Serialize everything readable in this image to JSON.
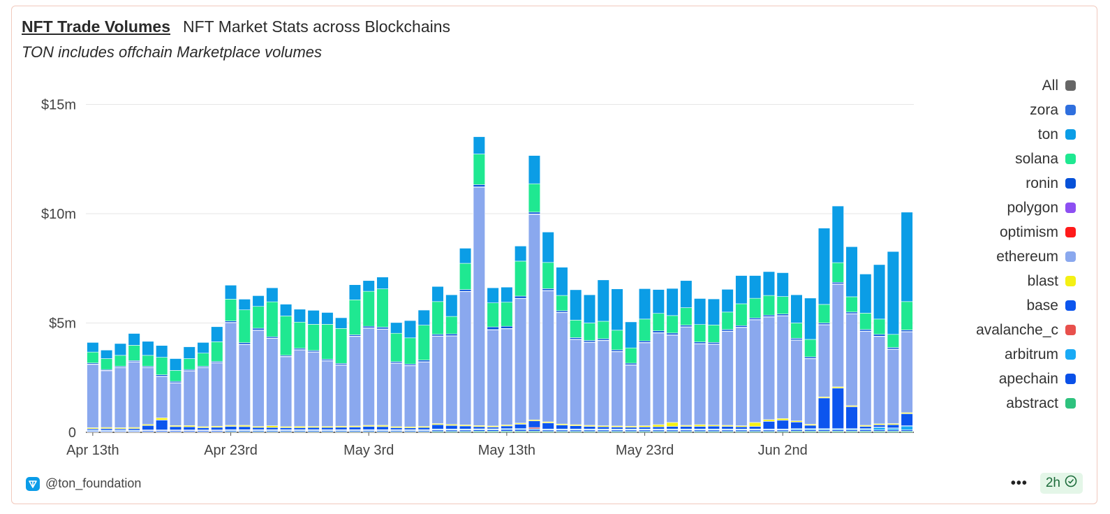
{
  "header": {
    "title": "NFT Trade Volumes",
    "subtitle": "NFT Market Stats across Blockchains",
    "note": "TON includes offchain Marketplace volumes"
  },
  "footer": {
    "author": "@ton_foundation",
    "more_label": "•••",
    "refresh_label": "2h"
  },
  "chart_data": {
    "type": "bar",
    "stacked": true,
    "title": "NFT Trade Volumes",
    "xlabel": "",
    "ylabel": "",
    "ylim": [
      0,
      15.8
    ],
    "yticks": [
      0,
      5,
      10,
      15
    ],
    "ytick_labels": [
      "0",
      "$5m",
      "$10m",
      "$15m"
    ],
    "xtick_labels": [
      {
        "label": "Apr 13th",
        "index": 0
      },
      {
        "label": "Apr 23rd",
        "index": 10
      },
      {
        "label": "May 3rd",
        "index": 20
      },
      {
        "label": "May 13th",
        "index": 30
      },
      {
        "label": "May 23rd",
        "index": 40
      },
      {
        "label": "Jun 2nd",
        "index": 50
      }
    ],
    "legend": [
      "All",
      "zora",
      "ton",
      "solana",
      "ronin",
      "polygon",
      "optimism",
      "ethereum",
      "blast",
      "base",
      "avalanche_c",
      "arbitrum",
      "apechain",
      "abstract"
    ],
    "legend_colors": [
      "#666666",
      "#2f6fde",
      "#0b9de6",
      "#1fe891",
      "#0651d8",
      "#8d4ff2",
      "#ff1a1a",
      "#8aa8ee",
      "#f4f014",
      "#0c55ee",
      "#e8504c",
      "#19aaf5",
      "#0a50e8",
      "#2ec27e"
    ],
    "series_order_bottom_to_top": [
      "abstract",
      "apechain",
      "arbitrum",
      "avalanche_c",
      "base",
      "blast",
      "ethereum",
      "optimism",
      "polygon",
      "ronin",
      "solana",
      "ton",
      "zora"
    ],
    "series": [
      {
        "name": "abstract",
        "color": "#2ec27e",
        "values": [
          0.02,
          0.02,
          0.02,
          0.02,
          0.02,
          0.02,
          0.02,
          0.02,
          0.02,
          0.02,
          0.03,
          0.03,
          0.03,
          0.03,
          0.03,
          0.03,
          0.03,
          0.03,
          0.03,
          0.03,
          0.03,
          0.03,
          0.03,
          0.03,
          0.03,
          0.04,
          0.04,
          0.04,
          0.05,
          0.05,
          0.05,
          0.05,
          0.05,
          0.04,
          0.04,
          0.04,
          0.04,
          0.04,
          0.04,
          0.04,
          0.04,
          0.04,
          0.04,
          0.04,
          0.04,
          0.04,
          0.04,
          0.04,
          0.04,
          0.04,
          0.04,
          0.05,
          0.05,
          0.05,
          0.05,
          0.05,
          0.05,
          0.05,
          0.05,
          0.05
        ]
      },
      {
        "name": "apechain",
        "color": "#0a50e8",
        "values": [
          0.04,
          0.04,
          0.04,
          0.04,
          0.05,
          0.05,
          0.05,
          0.05,
          0.05,
          0.05,
          0.05,
          0.05,
          0.05,
          0.05,
          0.05,
          0.05,
          0.05,
          0.05,
          0.05,
          0.05,
          0.05,
          0.05,
          0.05,
          0.05,
          0.05,
          0.06,
          0.06,
          0.06,
          0.06,
          0.06,
          0.07,
          0.07,
          0.07,
          0.06,
          0.06,
          0.06,
          0.06,
          0.06,
          0.06,
          0.06,
          0.06,
          0.06,
          0.06,
          0.06,
          0.06,
          0.06,
          0.06,
          0.06,
          0.06,
          0.06,
          0.06,
          0.06,
          0.06,
          0.06,
          0.06,
          0.06,
          0.06,
          0.06,
          0.06,
          0.06
        ]
      },
      {
        "name": "arbitrum",
        "color": "#19aaf5",
        "values": [
          0.03,
          0.03,
          0.03,
          0.03,
          0.03,
          0.03,
          0.03,
          0.03,
          0.03,
          0.03,
          0.03,
          0.03,
          0.03,
          0.03,
          0.03,
          0.03,
          0.03,
          0.03,
          0.03,
          0.03,
          0.03,
          0.03,
          0.03,
          0.03,
          0.03,
          0.04,
          0.04,
          0.04,
          0.04,
          0.04,
          0.04,
          0.04,
          0.04,
          0.04,
          0.04,
          0.04,
          0.04,
          0.04,
          0.04,
          0.04,
          0.04,
          0.04,
          0.04,
          0.04,
          0.04,
          0.04,
          0.04,
          0.04,
          0.04,
          0.04,
          0.04,
          0.05,
          0.05,
          0.05,
          0.05,
          0.05,
          0.05,
          0.12,
          0.08,
          0.18
        ]
      },
      {
        "name": "avalanche_c",
        "color": "#e8504c",
        "values": [
          0.01,
          0.01,
          0.01,
          0.01,
          0.01,
          0.01,
          0.01,
          0.01,
          0.01,
          0.01,
          0.01,
          0.01,
          0.01,
          0.01,
          0.01,
          0.01,
          0.01,
          0.01,
          0.01,
          0.01,
          0.01,
          0.01,
          0.01,
          0.01,
          0.01,
          0.01,
          0.01,
          0.01,
          0.01,
          0.01,
          0.01,
          0.01,
          0.06,
          0.01,
          0.01,
          0.01,
          0.01,
          0.01,
          0.01,
          0.01,
          0.01,
          0.01,
          0.01,
          0.01,
          0.01,
          0.01,
          0.01,
          0.01,
          0.01,
          0.01,
          0.01,
          0.01,
          0.01,
          0.01,
          0.01,
          0.01,
          0.01,
          0.01,
          0.01,
          0.01
        ]
      },
      {
        "name": "base",
        "color": "#0c55ee",
        "values": [
          0.06,
          0.07,
          0.06,
          0.07,
          0.2,
          0.45,
          0.15,
          0.14,
          0.1,
          0.12,
          0.15,
          0.14,
          0.1,
          0.1,
          0.09,
          0.09,
          0.1,
          0.1,
          0.11,
          0.12,
          0.15,
          0.14,
          0.09,
          0.08,
          0.1,
          0.2,
          0.16,
          0.14,
          0.1,
          0.08,
          0.12,
          0.2,
          0.3,
          0.28,
          0.18,
          0.15,
          0.12,
          0.1,
          0.09,
          0.08,
          0.09,
          0.1,
          0.12,
          0.12,
          0.12,
          0.13,
          0.12,
          0.1,
          0.12,
          0.35,
          0.4,
          0.3,
          0.15,
          1.4,
          1.85,
          1.0,
          0.1,
          0.1,
          0.15,
          0.55
        ]
      },
      {
        "name": "blast",
        "color": "#f4f014",
        "values": [
          0.05,
          0.05,
          0.05,
          0.05,
          0.05,
          0.1,
          0.05,
          0.06,
          0.05,
          0.05,
          0.05,
          0.06,
          0.05,
          0.08,
          0.05,
          0.06,
          0.05,
          0.05,
          0.05,
          0.05,
          0.05,
          0.06,
          0.05,
          0.05,
          0.05,
          0.05,
          0.05,
          0.05,
          0.05,
          0.05,
          0.05,
          0.05,
          0.05,
          0.05,
          0.05,
          0.05,
          0.05,
          0.05,
          0.05,
          0.05,
          0.06,
          0.1,
          0.18,
          0.05,
          0.08,
          0.05,
          0.05,
          0.05,
          0.18,
          0.08,
          0.08,
          0.05,
          0.05,
          0.05,
          0.06,
          0.05,
          0.05,
          0.05,
          0.05,
          0.05
        ]
      },
      {
        "name": "ethereum",
        "color": "#8aa8ee",
        "values": [
          2.9,
          2.6,
          2.75,
          3.0,
          2.6,
          1.9,
          1.95,
          2.5,
          2.7,
          2.9,
          4.7,
          3.7,
          4.4,
          4.0,
          3.2,
          3.5,
          3.4,
          3.0,
          2.8,
          4.1,
          4.45,
          4.4,
          2.9,
          2.8,
          2.95,
          4.0,
          4.05,
          6.1,
          10.9,
          4.4,
          4.4,
          5.7,
          9.4,
          6.0,
          5.1,
          3.9,
          3.8,
          3.9,
          3.4,
          2.8,
          3.8,
          4.2,
          4.0,
          4.5,
          3.7,
          3.7,
          4.3,
          4.5,
          4.7,
          4.7,
          4.7,
          3.7,
          3.0,
          3.3,
          4.7,
          4.2,
          4.3,
          4.0,
          3.4,
          3.7
        ]
      },
      {
        "name": "optimism",
        "color": "#ff1a1a",
        "values": [
          0,
          0,
          0,
          0,
          0,
          0,
          0,
          0,
          0,
          0,
          0,
          0,
          0,
          0,
          0,
          0,
          0,
          0,
          0,
          0,
          0,
          0,
          0,
          0,
          0,
          0,
          0,
          0,
          0,
          0,
          0,
          0,
          0,
          0,
          0,
          0,
          0,
          0,
          0,
          0,
          0,
          0,
          0,
          0,
          0,
          0,
          0,
          0,
          0,
          0,
          0,
          0,
          0,
          0,
          0,
          0,
          0,
          0,
          0,
          0
        ]
      },
      {
        "name": "polygon",
        "color": "#8d4ff2",
        "values": [
          0.01,
          0.01,
          0.01,
          0.01,
          0.01,
          0.01,
          0.01,
          0.01,
          0.01,
          0.01,
          0.01,
          0.01,
          0.01,
          0.01,
          0.01,
          0.01,
          0.01,
          0.01,
          0.01,
          0.01,
          0.01,
          0.01,
          0.01,
          0.01,
          0.01,
          0.01,
          0.01,
          0.01,
          0.02,
          0.01,
          0.01,
          0.01,
          0.02,
          0.01,
          0.01,
          0.01,
          0.01,
          0.01,
          0.01,
          0.01,
          0.01,
          0.01,
          0.01,
          0.01,
          0.01,
          0.01,
          0.01,
          0.01,
          0.01,
          0.01,
          0.01,
          0.01,
          0.01,
          0.01,
          0.01,
          0.01,
          0.01,
          0.01,
          0.01,
          0.01
        ]
      },
      {
        "name": "ronin",
        "color": "#0651d8",
        "values": [
          0.05,
          0.04,
          0.05,
          0.05,
          0.05,
          0.06,
          0.06,
          0.05,
          0.05,
          0.05,
          0.06,
          0.07,
          0.08,
          0.06,
          0.05,
          0.06,
          0.06,
          0.06,
          0.06,
          0.06,
          0.07,
          0.08,
          0.06,
          0.06,
          0.07,
          0.07,
          0.08,
          0.08,
          0.1,
          0.12,
          0.1,
          0.1,
          0.08,
          0.08,
          0.07,
          0.07,
          0.07,
          0.07,
          0.07,
          0.07,
          0.07,
          0.08,
          0.08,
          0.07,
          0.07,
          0.07,
          0.07,
          0.07,
          0.07,
          0.07,
          0.07,
          0.07,
          0.07,
          0.07,
          0.07,
          0.07,
          0.07,
          0.08,
          0.07,
          0.07
        ]
      },
      {
        "name": "solana",
        "color": "#1fe891",
        "values": [
          0.5,
          0.5,
          0.5,
          0.7,
          0.5,
          0.8,
          0.5,
          0.5,
          0.6,
          0.9,
          1.0,
          1.5,
          1.0,
          1.6,
          1.8,
          1.2,
          1.2,
          1.6,
          1.6,
          1.6,
          1.6,
          1.75,
          1.3,
          1.2,
          1.6,
          1.5,
          0.8,
          1.2,
          1.4,
          1.1,
          1.1,
          1.6,
          1.3,
          1.2,
          0.7,
          0.8,
          0.8,
          0.8,
          0.9,
          0.7,
          1.0,
          0.8,
          0.8,
          0.8,
          0.8,
          0.8,
          0.8,
          1.0,
          0.9,
          0.9,
          0.8,
          0.7,
          0.8,
          0.85,
          0.9,
          0.7,
          0.75,
          0.7,
          0.6,
          1.3
        ]
      },
      {
        "name": "ton",
        "color": "#0b9de6",
        "values": [
          0.45,
          0.4,
          0.55,
          0.55,
          0.65,
          0.55,
          0.55,
          0.55,
          0.5,
          0.7,
          0.65,
          0.5,
          0.5,
          0.65,
          0.55,
          0.6,
          0.65,
          0.55,
          0.5,
          0.7,
          0.5,
          0.55,
          0.5,
          0.8,
          0.7,
          0.7,
          1.0,
          0.7,
          0.8,
          0.7,
          0.7,
          0.7,
          1.3,
          1.4,
          1.3,
          1.4,
          1.3,
          1.9,
          1.9,
          1.2,
          1.4,
          1.1,
          1.25,
          1.25,
          1.2,
          1.2,
          1.05,
          1.3,
          1.05,
          1.1,
          1.1,
          1.3,
          1.9,
          3.5,
          2.6,
          2.3,
          1.8,
          2.5,
          3.8,
          4.1
        ]
      },
      {
        "name": "zora",
        "color": "#2f6fde",
        "values": [
          0.01,
          0.01,
          0.01,
          0.01,
          0.01,
          0.01,
          0.01,
          0.01,
          0.01,
          0.01,
          0.01,
          0.01,
          0.01,
          0.01,
          0.01,
          0.01,
          0.01,
          0.01,
          0.01,
          0.01,
          0.01,
          0.01,
          0.01,
          0.01,
          0.01,
          0.01,
          0.01,
          0.01,
          0.01,
          0.01,
          0.01,
          0.01,
          0.01,
          0.01,
          0.01,
          0.01,
          0.01,
          0.01,
          0.01,
          0.01,
          0.01,
          0.01,
          0.01,
          0.01,
          0.01,
          0.01,
          0.01,
          0.01,
          0.01,
          0.01,
          0.01,
          0.01,
          0.01,
          0.01,
          0.01,
          0.01,
          0.01,
          0.01,
          0.01,
          0.01
        ]
      }
    ]
  }
}
